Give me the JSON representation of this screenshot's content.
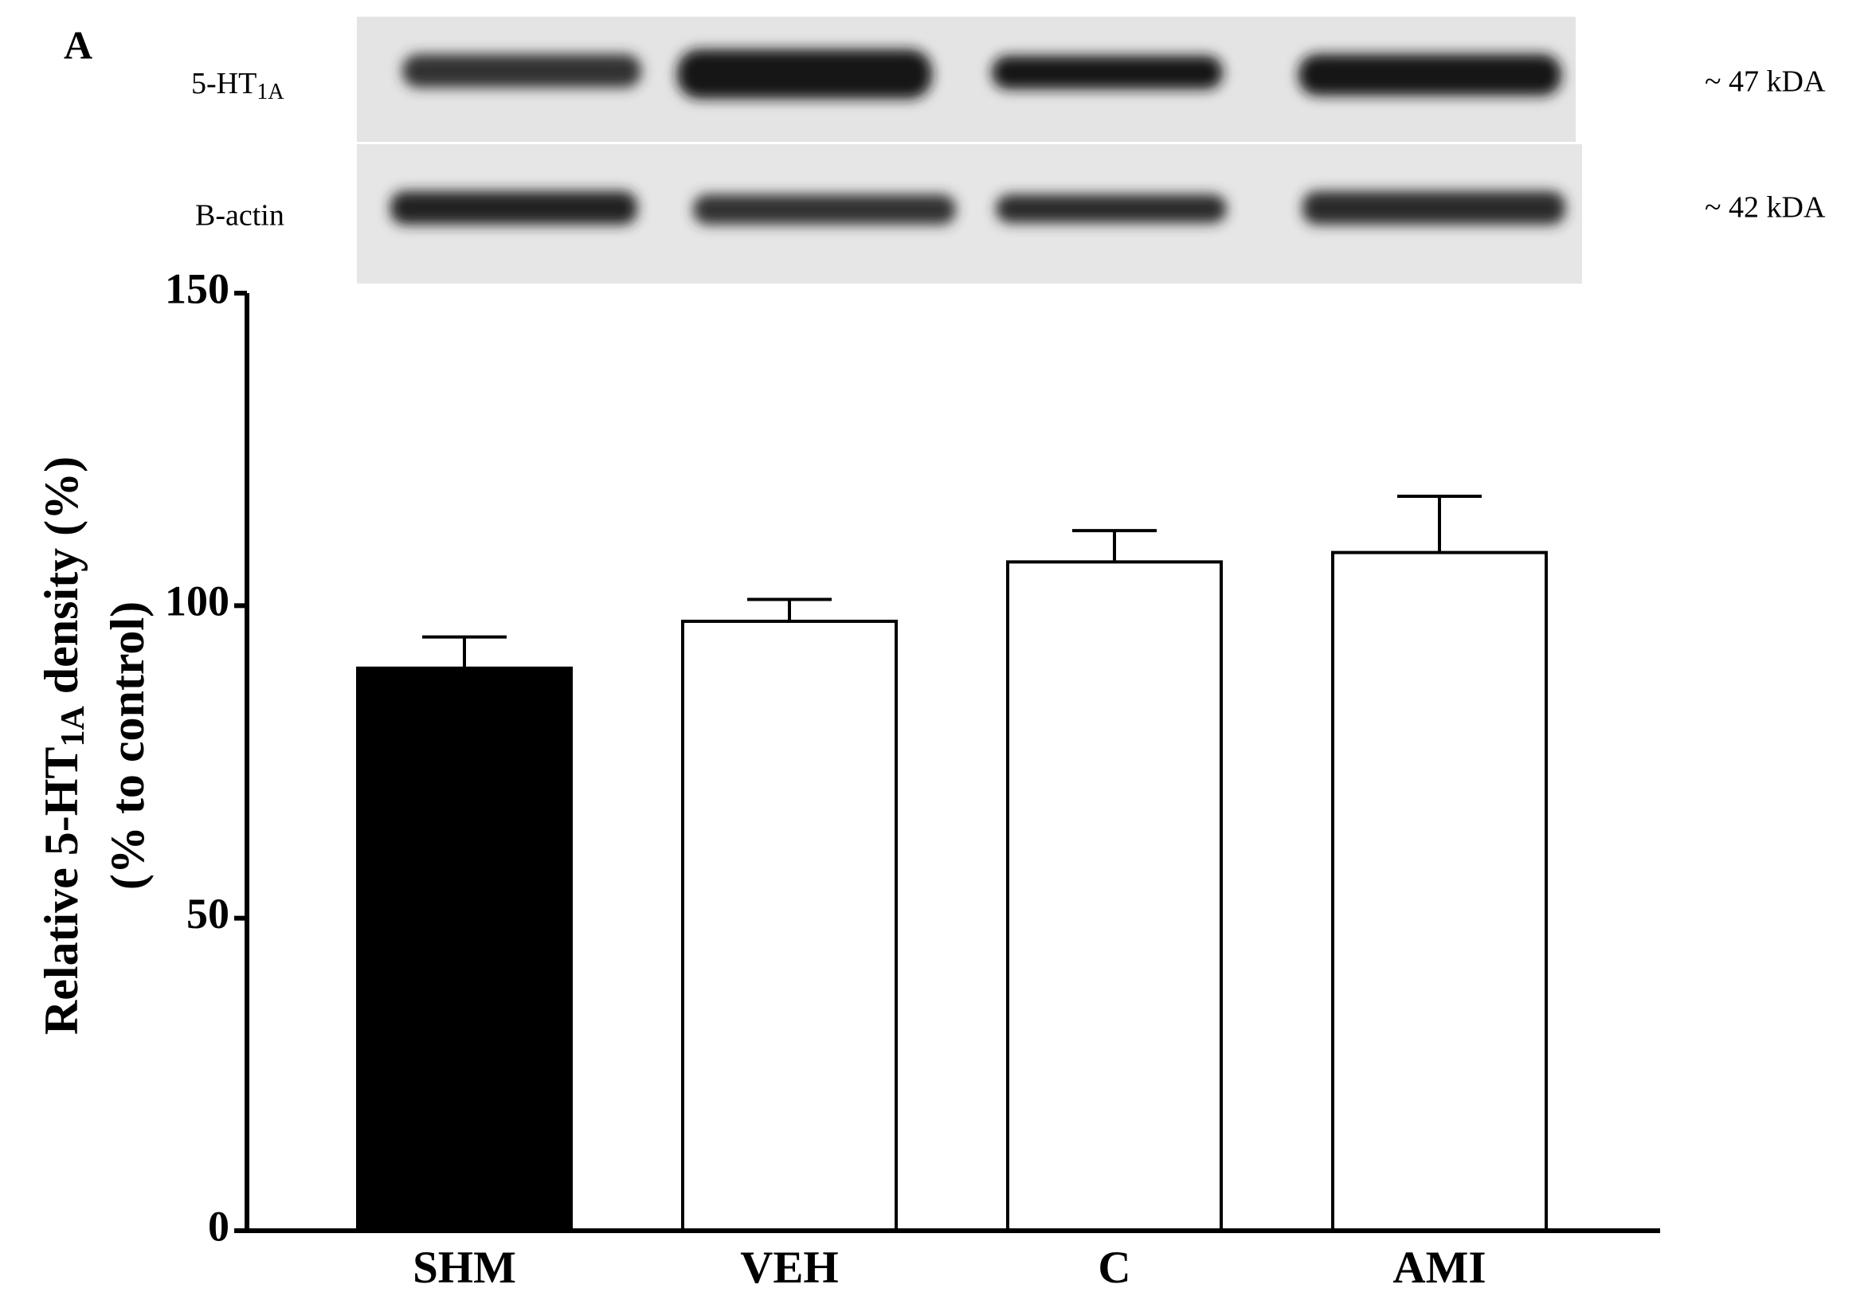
{
  "chart_data": {
    "type": "bar",
    "panel_label": "A",
    "blot_labels": [
      {
        "name": "5-HT",
        "subscript": "1A",
        "size": "~ 47 kDA"
      },
      {
        "name": "B-actin",
        "size": "~ 42 kDA"
      }
    ],
    "ylabel": {
      "text": "Relative 5-HT",
      "subscript": "1A",
      "rest": " density (%)"
    },
    "ylabel2": "(% to control)",
    "categories": [
      "SHM",
      "VEH",
      "C",
      "AMI"
    ],
    "values": [
      90,
      97.5,
      107,
      108.5
    ],
    "errors": [
      5,
      3.5,
      5,
      9
    ],
    "colors": [
      "#000000",
      "#ffffff",
      "#ffffff",
      "#ffffff"
    ],
    "ylim": [
      0,
      150
    ],
    "yticks": [
      0,
      50,
      100,
      150
    ]
  }
}
